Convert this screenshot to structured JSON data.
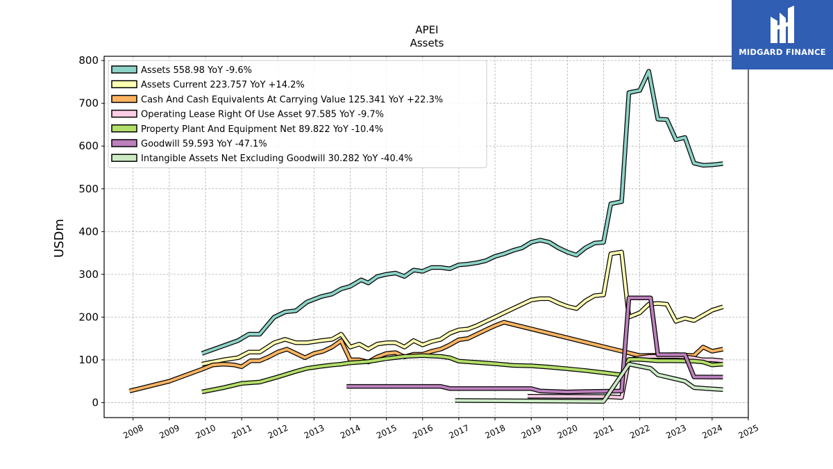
{
  "logo": {
    "text": "MIDGARD FINANCE"
  },
  "chart_data": {
    "type": "line",
    "title": "APEI",
    "subtitle": "Assets",
    "xlabel": "",
    "ylabel": "USDm",
    "xlim": [
      2007.2,
      2025.0
    ],
    "ylim": [
      -35,
      810
    ],
    "xticks": [
      "2008",
      "2009",
      "2010",
      "2011",
      "2012",
      "2013",
      "2014",
      "2015",
      "2016",
      "2017",
      "2018",
      "2019",
      "2020",
      "2021",
      "2022",
      "2023",
      "2024",
      "2025"
    ],
    "yticks": [
      0,
      100,
      200,
      300,
      400,
      500,
      600,
      700,
      800
    ],
    "grid": true,
    "legend_position": "top-left",
    "series": [
      {
        "name": "Assets",
        "legend": "Assets  558.98 YoY -9.6%",
        "color": "#8dd3c7",
        "x": [
          2009.9,
          2010.9,
          2011.2,
          2011.5,
          2011.9,
          2012.2,
          2012.5,
          2012.8,
          2013.2,
          2013.5,
          2013.75,
          2014.0,
          2014.3,
          2014.5,
          2014.75,
          2015.0,
          2015.25,
          2015.5,
          2015.75,
          2016.0,
          2016.25,
          2016.5,
          2016.75,
          2017.0,
          2017.25,
          2017.5,
          2017.75,
          2018.0,
          2018.25,
          2018.5,
          2018.75,
          2019.0,
          2019.25,
          2019.5,
          2019.75,
          2020.0,
          2020.25,
          2020.5,
          2020.75,
          2021.0,
          2021.2,
          2021.5,
          2021.7,
          2022.0,
          2022.25,
          2022.5,
          2022.75,
          2023.0,
          2023.25,
          2023.5,
          2023.75,
          2024.0,
          2024.3
        ],
        "y": [
          115,
          145,
          160,
          160,
          200,
          212,
          215,
          235,
          248,
          254,
          266,
          272,
          287,
          280,
          295,
          300,
          303,
          295,
          310,
          307,
          316,
          316,
          313,
          322,
          324,
          327,
          332,
          342,
          348,
          356,
          362,
          375,
          380,
          375,
          362,
          352,
          345,
          362,
          373,
          375,
          465,
          470,
          725,
          730,
          775,
          663,
          662,
          615,
          620,
          560,
          555,
          556,
          559
        ]
      },
      {
        "name": "Assets Current",
        "legend": "Assets Current  223.757 YoY +14.2%",
        "color": "#ffffb3",
        "x": [
          2009.9,
          2010.5,
          2010.9,
          2011.2,
          2011.5,
          2011.9,
          2012.2,
          2012.5,
          2012.8,
          2013.2,
          2013.5,
          2013.75,
          2014.0,
          2014.25,
          2014.5,
          2014.75,
          2015.0,
          2015.25,
          2015.5,
          2015.75,
          2016.0,
          2016.25,
          2016.5,
          2016.75,
          2017.0,
          2017.25,
          2017.5,
          2017.75,
          2018.0,
          2018.25,
          2018.5,
          2018.75,
          2019.0,
          2019.25,
          2019.5,
          2019.75,
          2020.0,
          2020.25,
          2020.5,
          2020.75,
          2021.0,
          2021.2,
          2021.5,
          2021.7,
          2022.0,
          2022.25,
          2022.5,
          2022.75,
          2023.0,
          2023.25,
          2023.5,
          2023.75,
          2024.0,
          2024.3
        ],
        "y": [
          90,
          100,
          105,
          118,
          118,
          140,
          148,
          140,
          140,
          145,
          148,
          160,
          130,
          137,
          125,
          137,
          140,
          140,
          130,
          145,
          135,
          143,
          148,
          162,
          170,
          172,
          180,
          190,
          200,
          210,
          220,
          230,
          240,
          243,
          243,
          233,
          225,
          220,
          238,
          250,
          252,
          348,
          352,
          200,
          210,
          230,
          232,
          230,
          190,
          197,
          192,
          204,
          216,
          224
        ]
      },
      {
        "name": "Cash And Cash Equivalents At Carrying Value",
        "legend": "Cash And Cash Equivalents At Carrying Value  125.341 YoY +22.3%",
        "color": "#fdb462",
        "x": [
          2007.9,
          2009.0,
          2009.9,
          2010.2,
          2010.5,
          2010.8,
          2011.0,
          2011.25,
          2011.5,
          2011.75,
          2012.0,
          2012.25,
          2012.5,
          2012.75,
          2013.0,
          2013.25,
          2013.5,
          2013.75,
          2014.0,
          2014.25,
          2014.5,
          2014.75,
          2015.0,
          2015.25,
          2015.5,
          2015.75,
          2016.0,
          2016.25,
          2016.5,
          2016.75,
          2017.0,
          2017.25,
          2017.5,
          2017.75,
          2018.0,
          2018.25,
          2022.0,
          2023.0,
          2023.5,
          2023.75,
          2024.0,
          2024.3
        ],
        "y": [
          27,
          50,
          78,
          88,
          90,
          88,
          84,
          98,
          98,
          107,
          118,
          125,
          115,
          105,
          115,
          120,
          130,
          145,
          100,
          100,
          95,
          107,
          115,
          117,
          107,
          113,
          113,
          120,
          125,
          135,
          147,
          150,
          160,
          170,
          180,
          188,
          110,
          112,
          110,
          130,
          120,
          125
        ]
      },
      {
        "name": "Operating Lease Right Of Use Asset",
        "legend": "Operating Lease Right Of Use Asset  97.585 YoY -9.7%",
        "color": "#fccde5",
        "x": [
          2018.9,
          2021.0,
          2021.3,
          2021.5,
          2021.7,
          2022.0,
          2022.25,
          2022.5,
          2022.75,
          2023.0,
          2023.25,
          2023.5,
          2023.75,
          2024.0,
          2024.3
        ],
        "y": [
          15,
          14,
          13,
          12,
          100,
          105,
          108,
          108,
          108,
          108,
          107,
          104,
          100,
          100,
          97.6
        ]
      },
      {
        "name": "Property Plant And Equipment Net",
        "legend": "Property Plant And Equipment Net  89.822 YoY -10.4%",
        "color": "#b3de69",
        "x": [
          2009.9,
          2010.5,
          2011.0,
          2011.5,
          2012.0,
          2012.5,
          2012.8,
          2013.2,
          2013.5,
          2013.75,
          2014.0,
          2014.5,
          2015.0,
          2015.5,
          2016.0,
          2016.5,
          2016.75,
          2017.0,
          2017.5,
          2018.0,
          2018.5,
          2019.0,
          2019.5,
          2020.0,
          2020.5,
          2021.0,
          2021.5,
          2021.7,
          2022.0,
          2022.5,
          2023.0,
          2023.5,
          2023.75,
          2024.0,
          2024.3
        ],
        "y": [
          25,
          35,
          45,
          48,
          60,
          73,
          80,
          85,
          88,
          90,
          93,
          96,
          103,
          108,
          110,
          108,
          105,
          97,
          94,
          91,
          87,
          86,
          83,
          79,
          75,
          70,
          65,
          101,
          101,
          98,
          98,
          97,
          95,
          88,
          90
        ]
      },
      {
        "name": "Goodwill",
        "legend": "Goodwill  59.593 YoY -47.1%",
        "color": "#bc80bd",
        "x": [
          2013.9,
          2016.5,
          2016.75,
          2018.25,
          2019.0,
          2019.25,
          2020.0,
          2020.5,
          2021.5,
          2021.7,
          2022.0,
          2022.3,
          2022.5,
          2023.25,
          2023.5,
          2024.3
        ],
        "y": [
          38,
          38,
          33,
          33,
          33,
          27,
          25,
          26,
          27,
          245,
          245,
          245,
          112,
          112,
          60,
          59.6
        ]
      },
      {
        "name": "Intangible Assets Net Excluding Goodwill",
        "legend": "Intangible Assets Net Excluding Goodwill  30.282 YoY -40.4%",
        "color": "#ccebc5",
        "x": [
          2016.9,
          2021.0,
          2021.7,
          2022.0,
          2022.3,
          2022.5,
          2023.0,
          2023.25,
          2023.5,
          2024.0,
          2024.3
        ],
        "y": [
          5,
          3,
          90,
          85,
          80,
          65,
          55,
          50,
          35,
          32,
          30.3
        ]
      }
    ]
  }
}
